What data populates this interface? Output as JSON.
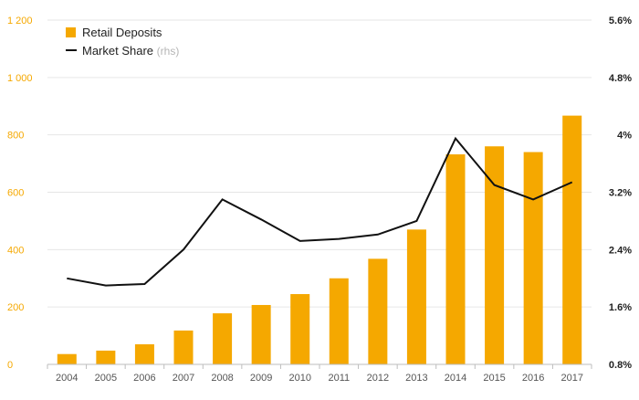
{
  "chart_data": {
    "type": "bar",
    "categories": [
      "2004",
      "2005",
      "2006",
      "2007",
      "2008",
      "2009",
      "2010",
      "2011",
      "2012",
      "2013",
      "2014",
      "2015",
      "2016",
      "2017"
    ],
    "series": [
      {
        "name": "Retail Deposits",
        "type": "bar",
        "axis": "left",
        "color": "#f5a800",
        "values": [
          36,
          48,
          70,
          118,
          178,
          207,
          245,
          300,
          368,
          470,
          732,
          760,
          740,
          867
        ]
      },
      {
        "name": "Market Share",
        "type": "line",
        "axis": "right",
        "color": "#111111",
        "values": [
          2.0,
          1.9,
          1.92,
          2.4,
          3.1,
          2.82,
          2.52,
          2.55,
          2.61,
          2.8,
          3.95,
          3.3,
          3.1,
          3.34
        ]
      }
    ],
    "legend": {
      "position": "top-left",
      "items": [
        {
          "label": "Retail Deposits",
          "sub": "",
          "marker": "square"
        },
        {
          "label": "Market Share",
          "sub": "(rhs)",
          "marker": "line"
        }
      ]
    },
    "y_left": {
      "range": [
        0,
        1200
      ],
      "ticks": [
        0,
        200,
        400,
        600,
        800,
        1000,
        1200
      ],
      "tick_labels": [
        "0",
        "200",
        "400",
        "600",
        "800",
        "1 000",
        "1 200"
      ]
    },
    "y_right": {
      "range": [
        0.8,
        5.6
      ],
      "ticks": [
        0.8,
        1.6,
        2.4,
        3.2,
        4.0,
        4.8,
        5.6
      ],
      "tick_labels": [
        "0.8%",
        "1.6%",
        "2.4%",
        "3.2%",
        "4%",
        "4.8%",
        "5.6%"
      ]
    },
    "grid": true,
    "title": "",
    "xlabel": "",
    "ylabel": ""
  }
}
